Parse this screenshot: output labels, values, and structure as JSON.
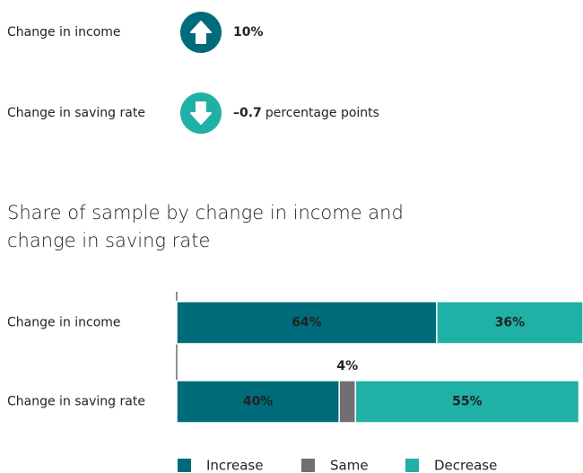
{
  "summary": [
    {
      "label": "Change in income",
      "value": "10%",
      "direction": "up",
      "color": "#006b7a"
    },
    {
      "label": "Change in saving rate",
      "value": "–0.7",
      "unit": "percentage points",
      "direction": "down",
      "color": "#1fb0a6"
    }
  ],
  "chart_data": {
    "type": "stacked-bar-horizontal",
    "title": "Share of sample by change in income and change in saving rate",
    "categories": [
      "Change in income",
      "Change in saving rate"
    ],
    "series": [
      {
        "name": "Increase",
        "color": "#006b7a",
        "values": [
          64,
          40
        ],
        "value_labels": [
          "64%",
          "40%"
        ]
      },
      {
        "name": "Same",
        "color": "#707070",
        "values": [
          null,
          4
        ],
        "value_labels": [
          null,
          "4%"
        ]
      },
      {
        "name": "Decrease",
        "color": "#1fb0a6",
        "values": [
          36,
          55
        ],
        "value_labels": [
          "36%",
          "55%"
        ]
      }
    ],
    "xlim": [
      0,
      100
    ]
  }
}
